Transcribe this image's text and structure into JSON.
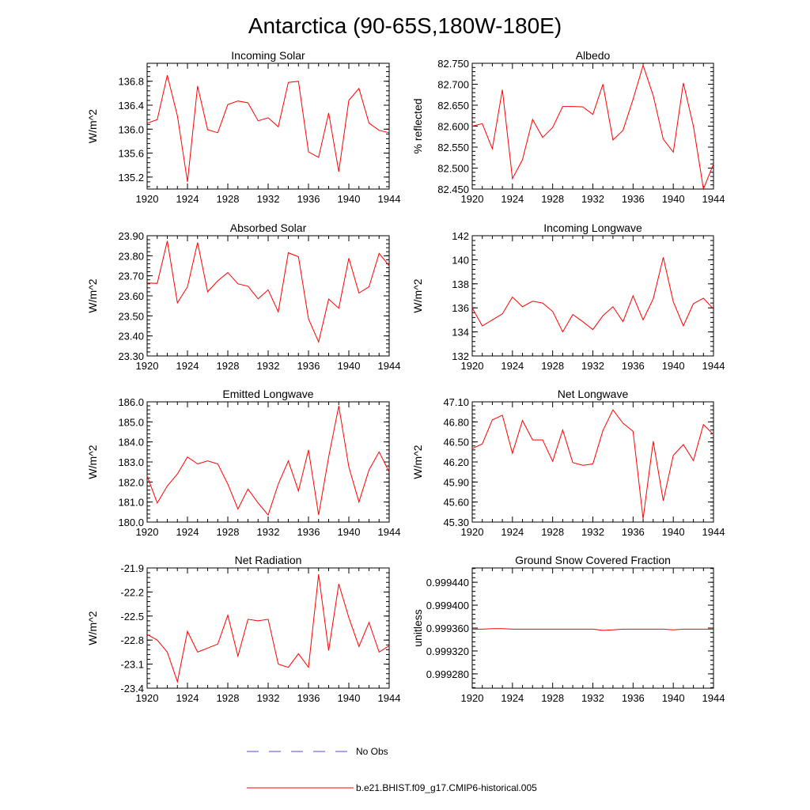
{
  "figure": {
    "title": "Antarctica (90-65S,180W-180E)",
    "series_color": "#ff0000",
    "obs_color": "#4b4bd6",
    "legend": {
      "obs_label": "No Obs",
      "model_label": "b.e21.BHIST.f09_g17.CMIP6-historical.005"
    }
  },
  "chart_data": [
    {
      "type": "line",
      "title": "Incoming Solar",
      "xlabel": "",
      "ylabel": "W/m^2",
      "xlim": [
        1920,
        1944
      ],
      "ylim": [
        135.0,
        137.1
      ],
      "xticks": [
        1920,
        1924,
        1928,
        1932,
        1936,
        1940,
        1944
      ],
      "yticks": [
        135.2,
        135.6,
        136.0,
        136.4,
        136.8
      ],
      "ytick_labels": [
        "135.2",
        "135.6",
        "136.0",
        "136.4",
        "136.8"
      ],
      "x": [
        1920,
        1921,
        1922,
        1923,
        1924,
        1925,
        1926,
        1927,
        1928,
        1929,
        1930,
        1931,
        1932,
        1933,
        1934,
        1935,
        1936,
        1937,
        1938,
        1939,
        1940,
        1941,
        1942,
        1943,
        1944
      ],
      "series": [
        {
          "name": "b.e21.BHIST.f09_g17.CMIP6-historical.005",
          "values": [
            136.1,
            136.16,
            136.9,
            136.22,
            135.12,
            136.72,
            135.99,
            135.94,
            136.41,
            136.47,
            136.44,
            136.14,
            136.19,
            136.04,
            136.78,
            136.8,
            135.62,
            135.53,
            136.27,
            135.29,
            136.48,
            136.68,
            136.1,
            135.98,
            135.94
          ]
        }
      ]
    },
    {
      "type": "line",
      "title": "Albedo",
      "xlabel": "",
      "ylabel": "% reflected",
      "xlim": [
        1920,
        1944
      ],
      "ylim": [
        82.45,
        82.75
      ],
      "xticks": [
        1920,
        1924,
        1928,
        1932,
        1936,
        1940,
        1944
      ],
      "yticks": [
        82.45,
        82.5,
        82.55,
        82.6,
        82.65,
        82.7,
        82.75
      ],
      "ytick_labels": [
        "82.450",
        "82.500",
        "82.550",
        "82.600",
        "82.650",
        "82.700",
        "82.750"
      ],
      "x": [
        1920,
        1921,
        1922,
        1923,
        1924,
        1925,
        1926,
        1927,
        1928,
        1929,
        1930,
        1931,
        1932,
        1933,
        1934,
        1935,
        1936,
        1937,
        1938,
        1939,
        1940,
        1941,
        1942,
        1943,
        1944
      ],
      "series": [
        {
          "name": "b.e21.BHIST.f09_g17.CMIP6-historical.005",
          "values": [
            82.6,
            82.606,
            82.546,
            82.687,
            82.475,
            82.52,
            82.616,
            82.573,
            82.597,
            82.647,
            82.647,
            82.646,
            82.628,
            82.7,
            82.567,
            82.59,
            82.664,
            82.745,
            82.673,
            82.569,
            82.538,
            82.703,
            82.6,
            82.45,
            82.51
          ]
        }
      ]
    },
    {
      "type": "line",
      "title": "Absorbed Solar",
      "xlabel": "",
      "ylabel": "W/m^2",
      "xlim": [
        1920,
        1944
      ],
      "ylim": [
        23.3,
        23.9
      ],
      "xticks": [
        1920,
        1924,
        1928,
        1932,
        1936,
        1940,
        1944
      ],
      "yticks": [
        23.3,
        23.4,
        23.5,
        23.6,
        23.7,
        23.8,
        23.9
      ],
      "ytick_labels": [
        "23.30",
        "23.40",
        "23.50",
        "23.60",
        "23.70",
        "23.80",
        "23.90"
      ],
      "x": [
        1920,
        1921,
        1922,
        1923,
        1924,
        1925,
        1926,
        1927,
        1928,
        1929,
        1930,
        1931,
        1932,
        1933,
        1934,
        1935,
        1936,
        1937,
        1938,
        1939,
        1940,
        1941,
        1942,
        1943,
        1944
      ],
      "series": [
        {
          "name": "b.e21.BHIST.f09_g17.CMIP6-historical.005",
          "values": [
            23.664,
            23.662,
            23.874,
            23.565,
            23.645,
            23.866,
            23.62,
            23.675,
            23.716,
            23.66,
            23.648,
            23.585,
            23.63,
            23.52,
            23.815,
            23.795,
            23.485,
            23.37,
            23.584,
            23.538,
            23.788,
            23.614,
            23.645,
            23.812,
            23.75
          ]
        }
      ]
    },
    {
      "type": "line",
      "title": "Incoming Longwave",
      "xlabel": "",
      "ylabel": "W/m^2",
      "xlim": [
        1920,
        1944
      ],
      "ylim": [
        132,
        142
      ],
      "xticks": [
        1920,
        1924,
        1928,
        1932,
        1936,
        1940,
        1944
      ],
      "yticks": [
        132,
        134,
        136,
        138,
        140,
        142
      ],
      "ytick_labels": [
        "132",
        "134",
        "136",
        "138",
        "140",
        "142"
      ],
      "x": [
        1920,
        1921,
        1922,
        1923,
        1924,
        1925,
        1926,
        1927,
        1928,
        1929,
        1930,
        1931,
        1932,
        1933,
        1934,
        1935,
        1936,
        1937,
        1938,
        1939,
        1940,
        1941,
        1942,
        1943,
        1944
      ],
      "series": [
        {
          "name": "b.e21.BHIST.f09_g17.CMIP6-historical.005",
          "values": [
            136.0,
            134.5,
            135.0,
            135.5,
            136.9,
            136.1,
            136.55,
            136.4,
            135.7,
            134.0,
            135.45,
            134.85,
            134.2,
            135.35,
            136.1,
            134.85,
            137.0,
            135.0,
            136.75,
            140.2,
            136.5,
            134.5,
            136.35,
            136.8,
            135.9
          ]
        }
      ]
    },
    {
      "type": "line",
      "title": "Emitted Longwave",
      "xlabel": "",
      "ylabel": "W/m^2",
      "xlim": [
        1920,
        1944
      ],
      "ylim": [
        180,
        186
      ],
      "xticks": [
        1920,
        1924,
        1928,
        1932,
        1936,
        1940,
        1944
      ],
      "yticks": [
        180,
        181,
        182,
        183,
        184,
        185,
        186
      ],
      "ytick_labels": [
        "180.0",
        "181.0",
        "182.0",
        "183.0",
        "184.0",
        "185.0",
        "186.0"
      ],
      "x": [
        1920,
        1921,
        1922,
        1923,
        1924,
        1925,
        1926,
        1927,
        1928,
        1929,
        1930,
        1931,
        1932,
        1933,
        1934,
        1935,
        1936,
        1937,
        1938,
        1939,
        1940,
        1941,
        1942,
        1943,
        1944
      ],
      "series": [
        {
          "name": "b.e21.BHIST.f09_g17.CMIP6-historical.005",
          "values": [
            182.3,
            180.95,
            181.8,
            182.4,
            183.25,
            182.9,
            183.05,
            182.9,
            181.9,
            180.65,
            181.65,
            180.95,
            180.35,
            181.9,
            183.05,
            181.55,
            183.6,
            180.35,
            183.25,
            185.8,
            182.75,
            181.0,
            182.6,
            183.5,
            182.5
          ]
        }
      ]
    },
    {
      "type": "line",
      "title": "Net Longwave",
      "xlabel": "",
      "ylabel": "W/m^2",
      "xlim": [
        1920,
        1944
      ],
      "ylim": [
        45.3,
        47.1
      ],
      "xticks": [
        1920,
        1924,
        1928,
        1932,
        1936,
        1940,
        1944
      ],
      "yticks": [
        45.3,
        45.6,
        45.9,
        46.2,
        46.5,
        46.8,
        47.1
      ],
      "ytick_labels": [
        "45.30",
        "45.60",
        "45.90",
        "46.20",
        "46.50",
        "46.80",
        "47.10"
      ],
      "x": [
        1920,
        1921,
        1922,
        1923,
        1924,
        1925,
        1926,
        1927,
        1928,
        1929,
        1930,
        1931,
        1932,
        1933,
        1934,
        1935,
        1936,
        1937,
        1938,
        1939,
        1940,
        1941,
        1942,
        1943,
        1944
      ],
      "series": [
        {
          "name": "b.e21.BHIST.f09_g17.CMIP6-historical.005",
          "values": [
            46.4,
            46.47,
            46.83,
            46.9,
            46.33,
            46.82,
            46.53,
            46.53,
            46.21,
            46.68,
            46.19,
            46.15,
            46.17,
            46.67,
            46.98,
            46.78,
            46.66,
            45.35,
            46.51,
            45.62,
            46.3,
            46.46,
            46.22,
            46.76,
            46.61
          ]
        }
      ]
    },
    {
      "type": "line",
      "title": "Net Radiation",
      "xlabel": "",
      "ylabel": "W/m^2",
      "xlim": [
        1920,
        1944
      ],
      "ylim": [
        -23.4,
        -21.9
      ],
      "xticks": [
        1920,
        1924,
        1928,
        1932,
        1936,
        1940,
        1944
      ],
      "yticks": [
        -23.4,
        -23.1,
        -22.8,
        -22.5,
        -22.2,
        -21.9
      ],
      "ytick_labels": [
        "-23.4",
        "-23.1",
        "-22.8",
        "-22.5",
        "-22.2",
        "-21.9"
      ],
      "x": [
        1920,
        1921,
        1922,
        1923,
        1924,
        1925,
        1926,
        1927,
        1928,
        1929,
        1930,
        1931,
        1932,
        1933,
        1934,
        1935,
        1936,
        1937,
        1938,
        1939,
        1940,
        1941,
        1942,
        1943,
        1944
      ],
      "series": [
        {
          "name": "b.e21.BHIST.f09_g17.CMIP6-historical.005",
          "values": [
            -22.73,
            -22.8,
            -22.95,
            -23.32,
            -22.69,
            -22.95,
            -22.9,
            -22.85,
            -22.49,
            -23.0,
            -22.54,
            -22.56,
            -22.54,
            -23.1,
            -23.14,
            -22.97,
            -23.14,
            -21.98,
            -22.93,
            -22.1,
            -22.52,
            -22.88,
            -22.58,
            -22.95,
            -22.87
          ]
        }
      ]
    },
    {
      "type": "line",
      "title": "Ground Snow Covered Fraction",
      "xlabel": "",
      "ylabel": "unitless",
      "xlim": [
        1920,
        1944
      ],
      "ylim": [
        0.999255,
        0.999465
      ],
      "xticks": [
        1920,
        1924,
        1928,
        1932,
        1936,
        1940,
        1944
      ],
      "yticks": [
        0.99928,
        0.99932,
        0.99936,
        0.9994,
        0.99944
      ],
      "ytick_labels": [
        "0.999280",
        "0.999320",
        "0.999360",
        "0.999400",
        "0.999440"
      ],
      "x": [
        1920,
        1921,
        1922,
        1923,
        1924,
        1925,
        1926,
        1927,
        1928,
        1929,
        1930,
        1931,
        1932,
        1933,
        1934,
        1935,
        1936,
        1937,
        1938,
        1939,
        1940,
        1941,
        1942,
        1943,
        1944
      ],
      "series": [
        {
          "name": "b.e21.BHIST.f09_g17.CMIP6-historical.005",
          "values": [
            0.999358,
            0.999358,
            0.999359,
            0.999359,
            0.999358,
            0.999358,
            0.999358,
            0.999358,
            0.999358,
            0.999358,
            0.999358,
            0.999358,
            0.999358,
            0.999356,
            0.999357,
            0.999358,
            0.999358,
            0.999358,
            0.999358,
            0.999358,
            0.999357,
            0.999358,
            0.999358,
            0.999358,
            0.999358
          ]
        }
      ]
    }
  ]
}
